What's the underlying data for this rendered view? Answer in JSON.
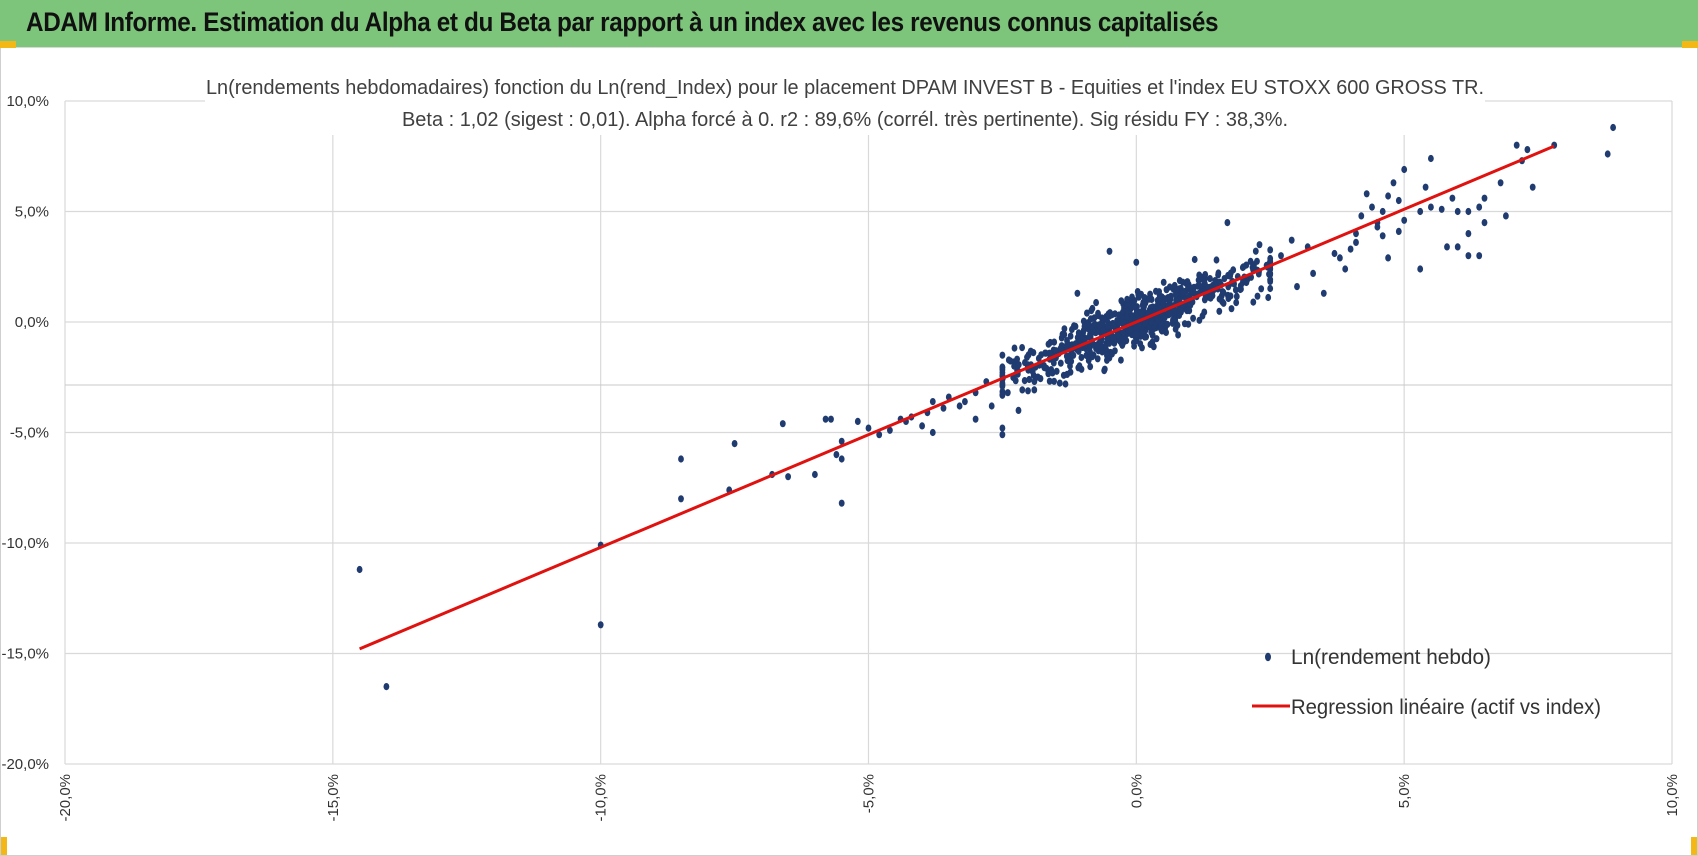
{
  "header": {
    "title": "ADAM Informe. Estimation du Alpha et du Beta par rapport à un index avec les revenus connus capitalisés"
  },
  "colors": {
    "header_bg": "#7dc57b",
    "accent_corner": "#f3b815",
    "points": "#1f3b70",
    "regression": "#e0120f",
    "grid": "#d9d9d9"
  },
  "chart_data": {
    "type": "scatter",
    "title_line1": "Ln(rendements hebdomadaires) fonction du Ln(rend_Index) pour le placement DPAM INVEST B - Equities  et l'index EU STOXX 600 GROSS TR.",
    "title_line2": "Beta : 1,02 (sigest : 0,01). Alpha forcé à 0. r2 : 89,6% (corrél. très pertinente). Sig résidu FY : 38,3%.",
    "xlim": [
      -0.2,
      0.1
    ],
    "ylim": [
      -0.2,
      0.1
    ],
    "x_ticks": [
      -0.2,
      -0.15,
      -0.1,
      -0.05,
      0.0,
      0.05,
      0.1
    ],
    "y_ticks": [
      0.1,
      0.05,
      0.0,
      -0.05,
      -0.1,
      -0.15,
      -0.2
    ],
    "x_tick_labels": [
      "-20,0%",
      "-15,0%",
      "-10,0%",
      "-5,0%",
      "0,0%",
      "5,0%",
      "10,0%"
    ],
    "y_tick_labels": [
      "10,0%",
      "5,0%",
      "0,0%",
      "-5,0%",
      "-10,0%",
      "-15,0%",
      "-20,0%"
    ],
    "grid": true,
    "legend": {
      "placement": "bottom-right",
      "entries": [
        {
          "label": "Ln(rendement hebdo)",
          "kind": "marker"
        },
        {
          "label": "Regression linéaire (actif vs index)",
          "kind": "line"
        }
      ]
    },
    "series": [
      {
        "name": "Ln(rendement hebdo)",
        "kind": "scatter",
        "cluster": {
          "count": 700,
          "x_range": [
            -0.025,
            0.025
          ],
          "beta": 1.02,
          "noise_sd": 0.0085
        },
        "points": [
          [
            -0.145,
            -0.112
          ],
          [
            -0.14,
            -0.165
          ],
          [
            -0.1,
            -0.101
          ],
          [
            -0.1,
            -0.137
          ],
          [
            -0.085,
            -0.062
          ],
          [
            -0.085,
            -0.08
          ],
          [
            -0.075,
            -0.055
          ],
          [
            -0.076,
            -0.076
          ],
          [
            -0.068,
            -0.069
          ],
          [
            -0.066,
            -0.046
          ],
          [
            -0.065,
            -0.07
          ],
          [
            -0.06,
            -0.069
          ],
          [
            -0.058,
            -0.044
          ],
          [
            -0.057,
            -0.044
          ],
          [
            -0.055,
            -0.082
          ],
          [
            -0.055,
            -0.054
          ],
          [
            -0.055,
            -0.062
          ],
          [
            -0.056,
            -0.06
          ],
          [
            -0.052,
            -0.045
          ],
          [
            -0.05,
            -0.048
          ],
          [
            -0.048,
            -0.051
          ],
          [
            -0.046,
            -0.049
          ],
          [
            -0.044,
            -0.044
          ],
          [
            -0.043,
            -0.045
          ],
          [
            -0.042,
            -0.043
          ],
          [
            -0.04,
            -0.047
          ],
          [
            -0.039,
            -0.041
          ],
          [
            -0.038,
            -0.05
          ],
          [
            -0.038,
            -0.036
          ],
          [
            -0.036,
            -0.039
          ],
          [
            -0.035,
            -0.034
          ],
          [
            -0.033,
            -0.038
          ],
          [
            -0.032,
            -0.036
          ],
          [
            -0.03,
            -0.032
          ],
          [
            -0.03,
            -0.044
          ],
          [
            -0.028,
            -0.027
          ],
          [
            -0.027,
            -0.038
          ],
          [
            -0.025,
            -0.051
          ],
          [
            -0.025,
            -0.048
          ],
          [
            -0.024,
            -0.032
          ],
          [
            -0.022,
            -0.04
          ],
          [
            -0.02,
            -0.026
          ],
          [
            -0.018,
            -0.019
          ],
          [
            -0.015,
            -0.013
          ],
          [
            -0.011,
            0.013
          ],
          [
            -0.006,
            -0.022
          ],
          [
            -0.005,
            0.032
          ],
          [
            0.0,
            0.027
          ],
          [
            0.008,
            0.003
          ],
          [
            0.017,
            0.045
          ],
          [
            0.02,
            0.025
          ],
          [
            0.023,
            0.035
          ],
          [
            0.027,
            0.03
          ],
          [
            0.029,
            0.037
          ],
          [
            0.03,
            0.016
          ],
          [
            0.032,
            0.034
          ],
          [
            0.033,
            0.022
          ],
          [
            0.035,
            0.013
          ],
          [
            0.037,
            0.031
          ],
          [
            0.038,
            0.029
          ],
          [
            0.039,
            0.024
          ],
          [
            0.04,
            0.033
          ],
          [
            0.041,
            0.036
          ],
          [
            0.042,
            0.048
          ],
          [
            0.043,
            0.058
          ],
          [
            0.044,
            0.052
          ],
          [
            0.045,
            0.043
          ],
          [
            0.046,
            0.039
          ],
          [
            0.047,
            0.057
          ],
          [
            0.048,
            0.063
          ],
          [
            0.049,
            0.041
          ],
          [
            0.05,
            0.046
          ],
          [
            0.046,
            0.05
          ],
          [
            0.045,
            0.045
          ],
          [
            0.047,
            0.029
          ],
          [
            0.041,
            0.04
          ],
          [
            0.05,
            0.069
          ],
          [
            0.049,
            0.055
          ],
          [
            0.053,
            0.024
          ],
          [
            0.054,
            0.061
          ],
          [
            0.055,
            0.074
          ],
          [
            0.055,
            0.052
          ],
          [
            0.053,
            0.05
          ],
          [
            0.057,
            0.051
          ],
          [
            0.058,
            0.034
          ],
          [
            0.06,
            0.034
          ],
          [
            0.059,
            0.056
          ],
          [
            0.062,
            0.03
          ],
          [
            0.06,
            0.05
          ],
          [
            0.062,
            0.05
          ],
          [
            0.064,
            0.052
          ],
          [
            0.065,
            0.045
          ],
          [
            0.064,
            0.03
          ],
          [
            0.062,
            0.04
          ],
          [
            0.065,
            0.056
          ],
          [
            0.068,
            0.063
          ],
          [
            0.071,
            0.08
          ],
          [
            0.078,
            0.08
          ],
          [
            0.088,
            0.076
          ],
          [
            0.089,
            0.088
          ],
          [
            0.069,
            0.048
          ],
          [
            0.072,
            0.073
          ],
          [
            0.074,
            0.061
          ],
          [
            0.073,
            0.078
          ]
        ]
      },
      {
        "name": "Regression linéaire (actif vs index)",
        "kind": "line",
        "beta": 1.02,
        "alpha": 0.0,
        "x_range": [
          -0.145,
          0.078
        ]
      }
    ]
  }
}
